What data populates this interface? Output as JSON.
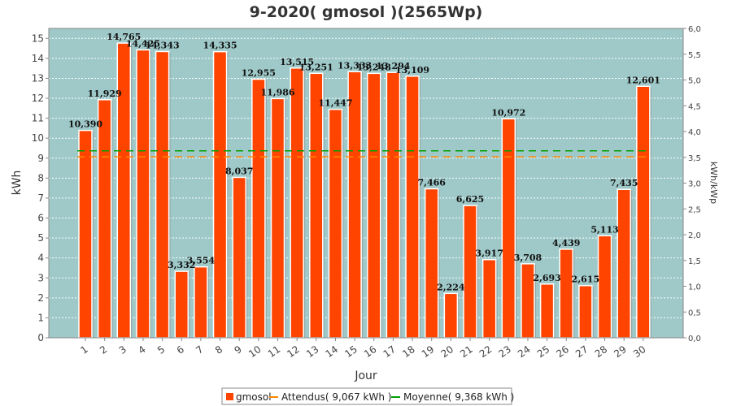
{
  "chart_data": {
    "type": "bar",
    "title": "9-2020( gmosol )(2565Wp)",
    "xlabel": "Jour",
    "ylabel": "kWh",
    "y2label": "kWh/kWp",
    "ylim": [
      0,
      15.5
    ],
    "y2lim": [
      0,
      6.0
    ],
    "yticks": [
      0,
      1,
      2,
      3,
      4,
      5,
      6,
      7,
      8,
      9,
      10,
      11,
      12,
      13,
      14,
      15
    ],
    "y2ticks": [
      "0,0",
      "0,5",
      "1,0",
      "1,5",
      "2,0",
      "2,5",
      "3,0",
      "3,5",
      "4,0",
      "4,5",
      "5,0",
      "5,5",
      "6,0"
    ],
    "grid": true,
    "legend_position": "bottom",
    "categories": [
      "1",
      "2",
      "3",
      "4",
      "5",
      "6",
      "7",
      "8",
      "9",
      "10",
      "11",
      "12",
      "13",
      "14",
      "15",
      "16",
      "17",
      "18",
      "19",
      "20",
      "21",
      "22",
      "23",
      "24",
      "25",
      "26",
      "27",
      "28",
      "29",
      "30"
    ],
    "series": [
      {
        "name": "gmosol",
        "color": "#ff4400",
        "values": [
          10.39,
          11.929,
          14.765,
          14.425,
          14.343,
          3.332,
          3.554,
          14.335,
          8.037,
          12.955,
          11.986,
          13.515,
          13.251,
          11.447,
          13.333,
          13.248,
          13.294,
          13.109,
          7.466,
          2.224,
          6.625,
          3.917,
          10.972,
          3.708,
          2.693,
          4.439,
          2.615,
          5.113,
          7.435,
          12.601
        ],
        "labels": [
          "10,390",
          "11,929",
          "14,765",
          "14,425",
          "14,343",
          "3,332",
          "3,554",
          "14,335",
          "8,037",
          "12,955",
          "11,986",
          "13,515",
          "13,251",
          "11,447",
          "13,333",
          "13,248",
          "13,294",
          "13,109",
          "7,466",
          "2,224",
          "6,625",
          "3,917",
          "10,972",
          "3,708",
          "2,693",
          "4,439",
          "2,615",
          "5,113",
          "7,435",
          "12,601"
        ]
      }
    ],
    "reference_lines": [
      {
        "name": "Attendus( 9,067 kWh )",
        "value": 9.067,
        "color": "#ff8800",
        "dash": "dashed"
      },
      {
        "name": "Moyenne( 9,368 kWh )",
        "value": 9.368,
        "color": "#00a000",
        "dash": "dashed"
      }
    ],
    "colors": {
      "plot_background": "#9fc9c9",
      "grid": "#ffffff"
    }
  }
}
